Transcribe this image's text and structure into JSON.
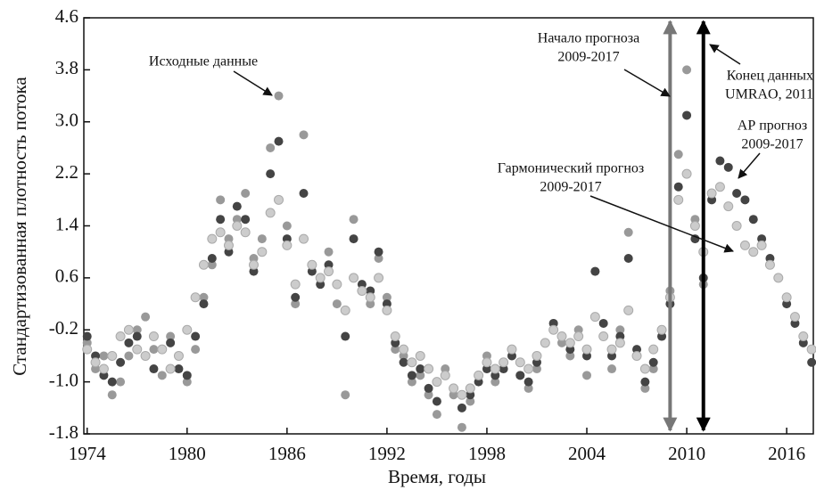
{
  "chart_data": {
    "type": "scatter",
    "x_label": "Время, годы",
    "y_label": "Стандартизованная плотность потока",
    "xlim": [
      1973.8,
      2017.6
    ],
    "xticks": [
      1974,
      1980,
      1986,
      1992,
      1998,
      2004,
      2010,
      2016
    ],
    "ylim": [
      -1.8,
      4.6
    ],
    "yticks": [
      -1.8,
      {
        "value": -1,
        "label": "-1.0"
      },
      -0.2,
      0.6,
      1.4,
      2.2,
      {
        "value": 3,
        "label": "3.0"
      },
      3.8,
      4.6
    ],
    "x": [
      1974,
      1974.5,
      1975,
      1975.5,
      1976,
      1976.5,
      1977,
      1977.5,
      1978,
      1978.5,
      1979,
      1979.5,
      1980,
      1980.5,
      1981,
      1981.5,
      1982,
      1982.5,
      1983,
      1983.5,
      1984,
      1984.5,
      1985,
      1985.5,
      1986,
      1986.5,
      1987,
      1987.5,
      1988,
      1988.5,
      1989,
      1989.5,
      1990,
      1990.5,
      1991,
      1991.5,
      1992,
      1992.5,
      1993,
      1993.5,
      1994,
      1994.5,
      1995,
      1995.5,
      1996,
      1996.5,
      1997,
      1997.5,
      1998,
      1998.5,
      1999,
      1999.5,
      2000,
      2000.5,
      2001,
      2001.5,
      2002,
      2002.5,
      2003,
      2003.5,
      2004,
      2004.5,
      2005,
      2005.5,
      2006,
      2006.5,
      2007,
      2007.5,
      2008,
      2008.5,
      2009,
      2009.5,
      2010,
      2010.5,
      2011,
      2011.5,
      2012,
      2012.5,
      2013,
      2013.5,
      2014,
      2014.5,
      2015,
      2015.5,
      2016,
      2016.5,
      2017,
      2017.5
    ],
    "series": [
      {
        "color": "#999999",
        "values": [
          -0.4,
          -0.8,
          -0.6,
          -1.2,
          -1.0,
          -0.6,
          -0.2,
          0.0,
          -0.5,
          -0.9,
          -0.3,
          -0.6,
          -1.0,
          -0.5,
          0.3,
          0.8,
          1.8,
          1.2,
          1.5,
          1.9,
          0.9,
          1.2,
          2.6,
          3.4,
          1.4,
          0.2,
          2.8,
          0.8,
          0.6,
          1.0,
          0.2,
          -1.2,
          1.5,
          0.4,
          0.2,
          0.9,
          0.3,
          -0.5,
          -0.6,
          -1.0,
          -0.9,
          -1.2,
          -1.5,
          -0.8,
          -1.2,
          -1.7,
          -1.3,
          -0.9,
          -0.6,
          -1.0,
          -0.7,
          -0.5,
          -0.9,
          -1.1,
          -0.8,
          -0.4,
          -0.1,
          -0.4,
          -0.6,
          -0.2,
          -0.9,
          0.7,
          -0.3,
          -0.8,
          -0.2,
          1.3,
          -0.6,
          -1.1,
          -0.8,
          -0.3,
          0.4,
          2.5,
          3.8,
          1.5,
          0.5,
          null,
          null,
          null,
          null,
          null,
          null,
          null,
          null,
          null,
          null,
          null,
          null,
          null
        ]
      },
      {
        "color": "#444444",
        "values": [
          -0.3,
          -0.6,
          -0.9,
          -1.0,
          -0.7,
          -0.4,
          -0.3,
          -0.6,
          -0.8,
          -0.5,
          -0.4,
          -0.8,
          -0.9,
          -0.3,
          0.2,
          0.9,
          1.5,
          1.0,
          1.7,
          1.5,
          0.7,
          1.0,
          2.2,
          2.7,
          1.2,
          0.3,
          1.9,
          0.7,
          0.5,
          0.8,
          0.5,
          -0.3,
          1.2,
          0.5,
          0.4,
          1.0,
          0.2,
          -0.4,
          -0.7,
          -0.9,
          -0.8,
          -1.1,
          -1.3,
          -0.9,
          -1.1,
          -1.4,
          -1.2,
          -1.0,
          -0.8,
          -0.9,
          -0.8,
          -0.6,
          -0.9,
          -1.0,
          -0.7,
          -0.4,
          -0.1,
          -0.3,
          -0.5,
          -0.3,
          -0.6,
          0.7,
          -0.1,
          -0.6,
          -0.3,
          0.9,
          -0.5,
          -1.0,
          -0.7,
          -0.3,
          0.2,
          2.0,
          3.1,
          1.2,
          0.6,
          1.8,
          2.4,
          2.3,
          1.9,
          1.8,
          1.5,
          1.2,
          0.9,
          0.6,
          0.2,
          -0.1,
          -0.4,
          -0.7
        ]
      },
      {
        "color": "#cccccc",
        "values": [
          -0.5,
          -0.7,
          -0.8,
          -0.6,
          -0.3,
          -0.2,
          -0.5,
          -0.6,
          -0.3,
          -0.5,
          -0.8,
          -0.6,
          -0.2,
          0.3,
          0.8,
          1.2,
          1.3,
          1.1,
          1.4,
          1.3,
          0.8,
          1.0,
          1.6,
          1.8,
          1.1,
          0.5,
          1.2,
          0.8,
          0.6,
          0.7,
          0.5,
          0.1,
          0.6,
          0.4,
          0.3,
          0.6,
          0.1,
          -0.3,
          -0.5,
          -0.7,
          -0.6,
          -0.8,
          -1.0,
          -0.9,
          -1.1,
          -1.2,
          -1.1,
          -0.9,
          -0.7,
          -0.8,
          -0.7,
          -0.5,
          -0.7,
          -0.8,
          -0.6,
          -0.4,
          -0.2,
          -0.3,
          -0.4,
          -0.3,
          -0.5,
          0.0,
          -0.3,
          -0.5,
          -0.4,
          0.1,
          -0.6,
          -0.8,
          -0.5,
          -0.2,
          0.3,
          1.8,
          2.2,
          1.4,
          1.0,
          1.9,
          2.0,
          1.7,
          1.4,
          1.1,
          1.0,
          1.1,
          0.8,
          0.6,
          0.3,
          0.0,
          -0.3,
          -0.5
        ]
      }
    ],
    "vlines": [
      {
        "x": 2009,
        "color": "#777777"
      },
      {
        "x": 2011,
        "color": "#000000"
      }
    ],
    "annotations": [
      {
        "text": [
          "Исходные данные"
        ]
      },
      {
        "text": [
          "Начало прогноза",
          "2009-2017"
        ]
      },
      {
        "text": [
          "Конец данных",
          "UMRAO, 2011"
        ]
      },
      {
        "text": [
          "АР прогноз",
          "2009-2017"
        ]
      },
      {
        "text": [
          "Гармонический прогноз",
          "2009-2017"
        ]
      }
    ]
  }
}
